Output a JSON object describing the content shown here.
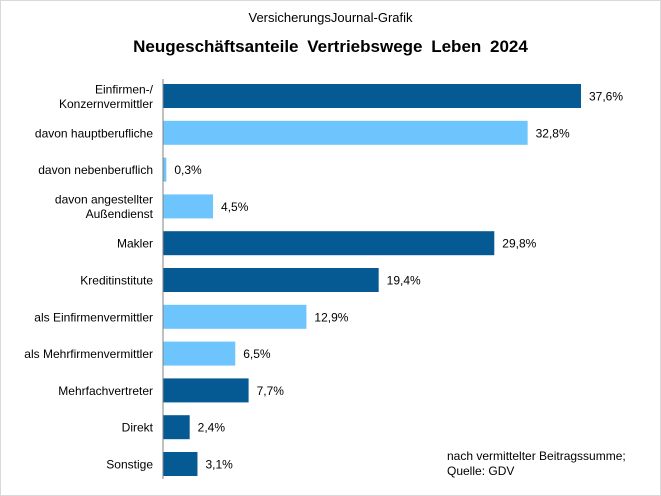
{
  "header": {
    "source_title": "VersicherungsJournal-Grafik",
    "title": "Neugeschäftsanteile  Vertriebswege Leben 2024"
  },
  "note": {
    "line1": "nach vermittelter Beitragssumme;",
    "line2": "Quelle: GDV"
  },
  "colors": {
    "dark": "#065a93",
    "light": "#6ec5fd"
  },
  "chart_data": {
    "type": "bar",
    "orientation": "horizontal",
    "title": "Neugeschäftsanteile  Vertriebswege Leben 2024",
    "xlim": [
      0,
      40
    ],
    "grid": false,
    "legend": "none",
    "unit": "%",
    "categories": [
      [
        "Einfirmen-/",
        "Konzernvermittler"
      ],
      [
        "davon hauptberufliche"
      ],
      [
        "davon nebenberuflich"
      ],
      [
        "davon angestellter",
        "Außendienst"
      ],
      [
        "Makler"
      ],
      [
        "Kreditinstitute"
      ],
      [
        "als Einfirmenvermittler"
      ],
      [
        "als Mehrfirmenvermittler"
      ],
      [
        "Mehrfachvertreter"
      ],
      [
        "Direkt"
      ],
      [
        "Sonstige"
      ]
    ],
    "values": [
      37.6,
      32.8,
      0.3,
      4.5,
      29.8,
      19.4,
      12.9,
      6.5,
      7.7,
      2.4,
      3.1
    ],
    "value_labels": [
      "37,6%",
      "32,8%",
      "0,3%",
      "4,5%",
      "29,8%",
      "19,4%",
      "12,9%",
      "6,5%",
      "7,7%",
      "2,4%",
      "3,1%"
    ],
    "bar_tone": [
      "dark",
      "light",
      "light",
      "light",
      "dark",
      "dark",
      "light",
      "light",
      "dark",
      "dark",
      "dark"
    ]
  }
}
